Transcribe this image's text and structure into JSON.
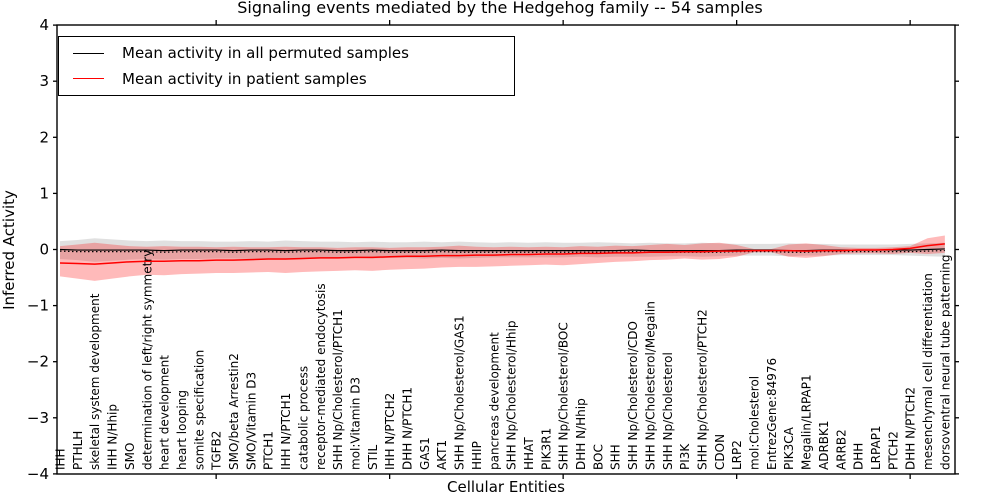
{
  "chart_data": {
    "type": "line",
    "title": "Signaling events mediated by the Hedgehog family -- 54 samples",
    "xlabel": "Cellular Entities",
    "ylabel": "Inferred Activity",
    "ylim": [
      -4,
      4
    ],
    "yticks": [
      -4,
      -3,
      -2,
      -1,
      0,
      1,
      2,
      3,
      4
    ],
    "x_major_tick_indices": [
      9,
      19,
      29,
      39,
      49
    ],
    "grid": false,
    "legend_position": "upper left",
    "categories": [
      "IHH",
      "PTHLH",
      "skeletal system development",
      "IHH N/Hhip",
      "SMO",
      "determination of left/right symmetry",
      "heart development",
      "heart looping",
      "somite specification",
      "TGFB2",
      "SMO/beta Arrestin2",
      "SMO/Vitamin D3",
      "PTCH1",
      "IHH N/PTCH1",
      "catabolic process",
      "receptor-mediated endocytosis",
      "SHH Np/Cholesterol/PTCH1",
      "mol:Vitamin D3",
      "STIL",
      "IHH N/PTCH2",
      "DHH N/PTCH1",
      "GAS1",
      "AKT1",
      "SHH Np/Cholesterol/GAS1",
      "HHIP",
      "pancreas development",
      "SHH Np/Cholesterol/Hhip",
      "HHAT",
      "PIK3R1",
      "SHH Np/Cholesterol/BOC",
      "DHH N/Hhip",
      "BOC",
      "SHH",
      "SHH Np/Cholesterol/CDO",
      "SHH Np/Cholesterol/Megalin",
      "SHH Np/Cholesterol",
      "PI3K",
      "SHH Np/Cholesterol/PTCH2",
      "CDON",
      "LRP2",
      "mol:Cholesterol",
      "EntrezGene:84976",
      "PIK3CA",
      "Megalin/LRPAP1",
      "ADRBK1",
      "ARRB2",
      "DHH",
      "LRPAP1",
      "PTCH2",
      "DHH N/PTCH2",
      "mesenchymal cell differentiation",
      "dorsoventral neural tube patterning"
    ],
    "series": [
      {
        "name": "Mean activity in all permuted samples",
        "color": "#000000",
        "dotted_companion": true,
        "values": [
          0,
          -0.01,
          -0.01,
          -0.01,
          -0.01,
          -0.01,
          -0.02,
          -0.01,
          -0.01,
          -0.01,
          -0.02,
          -0.01,
          -0.01,
          -0.02,
          -0.01,
          -0.01,
          -0.02,
          -0.02,
          -0.01,
          -0.02,
          -0.02,
          -0.02,
          -0.01,
          -0.02,
          -0.02,
          -0.02,
          -0.02,
          -0.02,
          -0.02,
          -0.02,
          -0.02,
          -0.02,
          -0.02,
          -0.01,
          -0.02,
          -0.02,
          -0.02,
          -0.02,
          -0.02,
          -0.01,
          -0.01,
          -0.01,
          -0.02,
          -0.02,
          -0.01,
          -0.01,
          -0.01,
          -0.01,
          -0.01,
          -0.01,
          0,
          0.01
        ]
      },
      {
        "name": "Mean activity in patient samples",
        "color": "#ff0000",
        "dotted_companion": false,
        "values": [
          -0.24,
          -0.25,
          -0.26,
          -0.24,
          -0.22,
          -0.21,
          -0.21,
          -0.2,
          -0.2,
          -0.19,
          -0.19,
          -0.18,
          -0.17,
          -0.17,
          -0.16,
          -0.15,
          -0.15,
          -0.14,
          -0.14,
          -0.13,
          -0.12,
          -0.12,
          -0.11,
          -0.11,
          -0.1,
          -0.1,
          -0.09,
          -0.09,
          -0.08,
          -0.08,
          -0.07,
          -0.07,
          -0.06,
          -0.06,
          -0.05,
          -0.05,
          -0.04,
          -0.04,
          -0.03,
          -0.03,
          -0.02,
          -0.02,
          -0.02,
          -0.03,
          -0.02,
          -0.02,
          -0.01,
          -0.01,
          0,
          0.02,
          0.07,
          0.1
        ]
      }
    ],
    "bands": [
      {
        "name": "permuted samples spread",
        "color": "#000000",
        "opacity": 0.12,
        "top": [
          0.15,
          0.17,
          0.2,
          0.18,
          0.16,
          0.15,
          0.16,
          0.15,
          0.15,
          0.14,
          0.14,
          0.15,
          0.14,
          0.16,
          0.15,
          0.14,
          0.14,
          0.13,
          0.14,
          0.13,
          0.13,
          0.14,
          0.13,
          0.14,
          0.13,
          0.12,
          0.13,
          0.12,
          0.13,
          0.12,
          0.12,
          0.13,
          0.12,
          0.11,
          0.12,
          0.11,
          0.11,
          0.12,
          0.11,
          0.1,
          0.1,
          0.1,
          0.11,
          0.1,
          0.1,
          0.09,
          0.09,
          0.09,
          0.09,
          0.1,
          0.11,
          0.12
        ],
        "bottom": [
          -0.17,
          -0.19,
          -0.22,
          -0.2,
          -0.18,
          -0.17,
          -0.18,
          -0.17,
          -0.17,
          -0.16,
          -0.16,
          -0.17,
          -0.16,
          -0.18,
          -0.17,
          -0.16,
          -0.16,
          -0.15,
          -0.16,
          -0.15,
          -0.15,
          -0.16,
          -0.15,
          -0.16,
          -0.15,
          -0.14,
          -0.14,
          -0.14,
          -0.14,
          -0.14,
          -0.13,
          -0.14,
          -0.13,
          -0.13,
          -0.13,
          -0.12,
          -0.12,
          -0.13,
          -0.12,
          -0.11,
          -0.11,
          -0.11,
          -0.12,
          -0.11,
          -0.11,
          -0.1,
          -0.1,
          -0.1,
          -0.1,
          -0.11,
          -0.12,
          -0.13
        ]
      },
      {
        "name": "patient samples spread",
        "color": "#ff0000",
        "opacity": 0.27,
        "top": [
          0.06,
          0.09,
          0.12,
          0.09,
          0.06,
          0.05,
          0.06,
          0.05,
          0.05,
          0.04,
          0.05,
          0.04,
          0.04,
          0.05,
          0.04,
          0.04,
          0.03,
          0.04,
          0.04,
          0.03,
          0.04,
          0.04,
          0.05,
          0.07,
          0.05,
          0.04,
          0.05,
          0.04,
          0.05,
          0.04,
          0.06,
          0.05,
          0.07,
          0.06,
          0.08,
          0.1,
          0.08,
          0.11,
          0.12,
          0.08,
          0.01,
          0.01,
          0.09,
          0.11,
          0.08,
          0.04,
          0.03,
          0.03,
          0.04,
          0.06,
          0.2,
          0.25
        ],
        "bottom": [
          -0.48,
          -0.52,
          -0.56,
          -0.52,
          -0.48,
          -0.45,
          -0.46,
          -0.44,
          -0.43,
          -0.42,
          -0.42,
          -0.41,
          -0.4,
          -0.42,
          -0.4,
          -0.39,
          -0.38,
          -0.37,
          -0.38,
          -0.36,
          -0.35,
          -0.34,
          -0.32,
          -0.31,
          -0.31,
          -0.3,
          -0.29,
          -0.28,
          -0.27,
          -0.28,
          -0.26,
          -0.24,
          -0.22,
          -0.21,
          -0.19,
          -0.18,
          -0.16,
          -0.18,
          -0.17,
          -0.13,
          -0.05,
          -0.05,
          -0.13,
          -0.15,
          -0.12,
          -0.08,
          -0.07,
          -0.07,
          -0.08,
          -0.06,
          -0.08,
          -0.06
        ]
      }
    ]
  }
}
